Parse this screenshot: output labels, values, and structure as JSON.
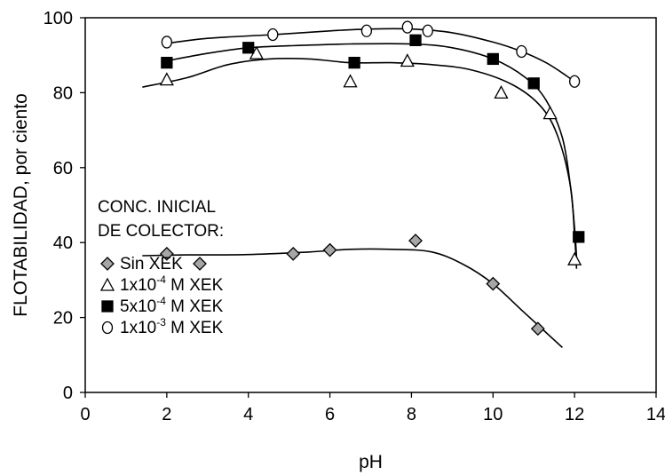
{
  "chart_data": {
    "type": "scatter",
    "title": "",
    "xlabel": "pH",
    "ylabel": "FLOTABILIDAD, por ciento",
    "xlim": [
      0,
      14
    ],
    "ylim": [
      0,
      100
    ],
    "x_ticks": [
      "0",
      "2",
      "4",
      "6",
      "8",
      "10",
      "12",
      "14"
    ],
    "y_ticks": [
      "0",
      "20",
      "40",
      "60",
      "80",
      "100"
    ],
    "grid": false,
    "legend_title": [
      "CONC. INICIAL",
      "DE COLECTOR:"
    ],
    "legend_position": "center-left",
    "series": [
      {
        "name": "Sin XEK",
        "marker": "diamond",
        "color": "#a6a6a6",
        "points": [
          [
            2.0,
            37
          ],
          [
            5.1,
            37
          ],
          [
            6.0,
            38
          ],
          [
            8.1,
            40.5
          ],
          [
            10.0,
            29
          ],
          [
            11.1,
            17
          ]
        ],
        "curve": [
          [
            1.4,
            36.5
          ],
          [
            2.5,
            36.7
          ],
          [
            4.0,
            36.8
          ],
          [
            5.5,
            37.5
          ],
          [
            6.5,
            38.2
          ],
          [
            7.5,
            38.2
          ],
          [
            8.5,
            37.5
          ],
          [
            9.3,
            34
          ],
          [
            10.0,
            29
          ],
          [
            10.7,
            22
          ],
          [
            11.3,
            16
          ],
          [
            11.7,
            12
          ]
        ]
      },
      {
        "name": "1x10-4 M XEK",
        "marker": "triangle",
        "color": "#ffffff",
        "points": [
          [
            2.0,
            83.5
          ],
          [
            4.2,
            90.5
          ],
          [
            6.5,
            83
          ],
          [
            7.9,
            88.5
          ],
          [
            10.2,
            80
          ],
          [
            11.4,
            74.5
          ],
          [
            12.0,
            35.5
          ]
        ],
        "curve": [
          [
            1.4,
            81.5
          ],
          [
            2.5,
            84
          ],
          [
            3.5,
            87.5
          ],
          [
            4.5,
            89
          ],
          [
            5.5,
            89
          ],
          [
            6.5,
            88
          ],
          [
            7.5,
            88
          ],
          [
            8.5,
            87.5
          ],
          [
            9.5,
            86
          ],
          [
            10.5,
            82
          ],
          [
            11.2,
            76
          ],
          [
            11.6,
            68
          ],
          [
            11.9,
            55
          ],
          [
            12.0,
            42
          ],
          [
            12.05,
            33
          ]
        ]
      },
      {
        "name": "5x10-4 M XEK",
        "marker": "square",
        "color": "#000000",
        "points": [
          [
            2.0,
            88
          ],
          [
            4.0,
            92
          ],
          [
            6.6,
            88
          ],
          [
            8.1,
            94
          ],
          [
            10.0,
            89
          ],
          [
            11.0,
            82.5
          ],
          [
            12.1,
            41.5
          ]
        ],
        "curve": [
          [
            2.0,
            88.5
          ],
          [
            3.0,
            90.5
          ],
          [
            4.0,
            92
          ],
          [
            5.0,
            92.5
          ],
          [
            6.5,
            93
          ],
          [
            8.0,
            93
          ],
          [
            9.0,
            92
          ],
          [
            10.0,
            89
          ],
          [
            10.8,
            84
          ],
          [
            11.3,
            78
          ],
          [
            11.7,
            68
          ],
          [
            11.9,
            55
          ],
          [
            12.0,
            44
          ],
          [
            12.05,
            36
          ]
        ]
      },
      {
        "name": "1x10-3 M XEK",
        "marker": "circle",
        "color": "#ffffff",
        "points": [
          [
            2.0,
            93.5
          ],
          [
            4.6,
            95.5
          ],
          [
            6.9,
            96.5
          ],
          [
            7.9,
            97.5
          ],
          [
            8.4,
            96.5
          ],
          [
            10.7,
            91
          ],
          [
            12.0,
            83
          ]
        ],
        "curve": [
          [
            1.9,
            93
          ],
          [
            3.0,
            94.5
          ],
          [
            4.6,
            95.5
          ],
          [
            6.0,
            96.5
          ],
          [
            7.0,
            97
          ],
          [
            8.0,
            97
          ],
          [
            9.0,
            96
          ],
          [
            10.0,
            93.5
          ],
          [
            10.7,
            91
          ],
          [
            11.3,
            88
          ],
          [
            11.8,
            84.5
          ],
          [
            12.1,
            82
          ]
        ]
      }
    ],
    "legend_labels": [
      {
        "base": "Sin XEK",
        "sup": "",
        "rest": ""
      },
      {
        "base": "1x10",
        "sup": "-4",
        "rest": " M XEK"
      },
      {
        "base": "5x10",
        "sup": "-4",
        "rest": " M XEK"
      },
      {
        "base": "1x10",
        "sup": "-3",
        "rest": " M XEK"
      }
    ]
  }
}
